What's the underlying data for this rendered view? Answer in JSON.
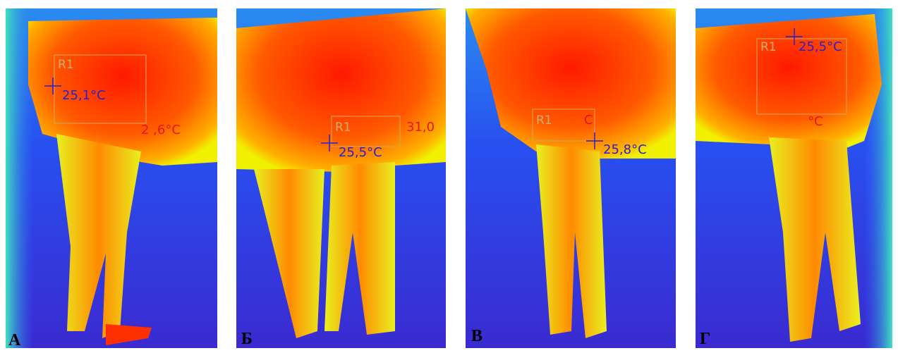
{
  "panels": [
    {
      "letter": "А",
      "roi": "R1",
      "temp": "25,1°C",
      "partial": "2 ,6°C"
    },
    {
      "letter": "Б",
      "roi": "R1",
      "temp": "25,5°C",
      "partial": "31,0"
    },
    {
      "letter": "В",
      "roi": "R1",
      "temp": "25,8°C",
      "partial": "C"
    },
    {
      "letter": "Г",
      "roi": "R1",
      "temp": "25,5°C",
      "partial": "°C"
    }
  ]
}
